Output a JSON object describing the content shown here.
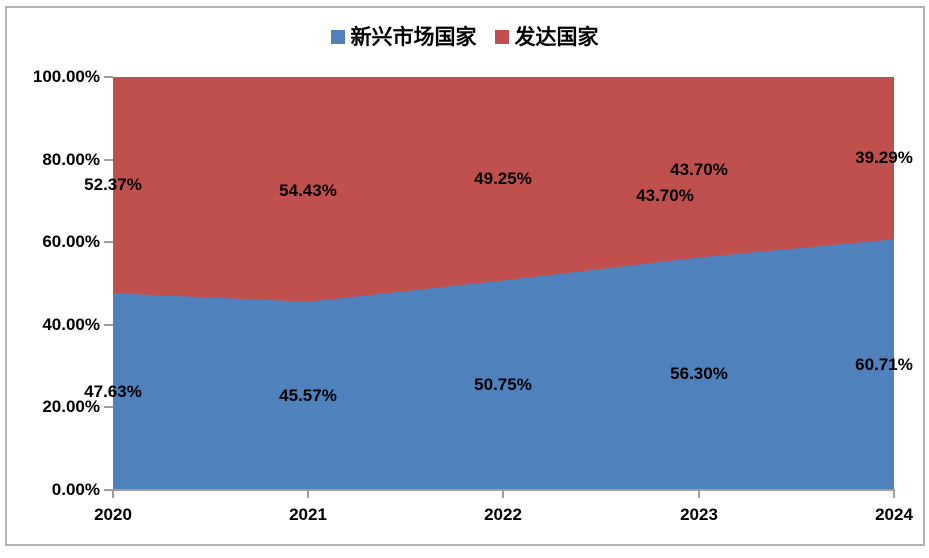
{
  "chart_data": {
    "type": "area",
    "stacking": "100%-stacked",
    "categories": [
      "2020",
      "2021",
      "2022",
      "2023",
      "2024"
    ],
    "series": [
      {
        "name": "新兴市场国家",
        "color": "#4F81BD",
        "values": [
          47.63,
          45.57,
          50.75,
          56.3,
          60.71
        ],
        "labels": [
          "47.63%",
          "45.57%",
          "50.75%",
          "56.30%",
          "60.71%"
        ]
      },
      {
        "name": "发达国家",
        "color": "#C0504D",
        "values": [
          52.37,
          54.43,
          49.25,
          43.7,
          39.29
        ],
        "labels": [
          "52.37%",
          "54.43%",
          "49.25%",
          "43.70%",
          "39.29%"
        ]
      }
    ],
    "duplicate_label": {
      "text": "43.70%",
      "series": "发达国家",
      "category": "2023"
    },
    "y_ticks": [
      "0.00%",
      "20.00%",
      "40.00%",
      "60.00%",
      "80.00%",
      "100.00%"
    ],
    "ylim": [
      0,
      100
    ],
    "grid": false,
    "legend_position": "top",
    "axis_color": "#9e9e9e",
    "border_color": "#b3b3b3",
    "label_color": "#000000"
  }
}
